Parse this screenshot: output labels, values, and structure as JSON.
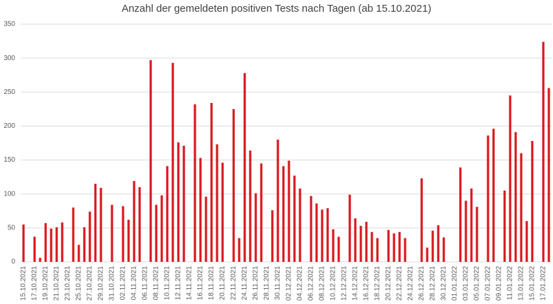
{
  "chart_data": {
    "type": "bar",
    "title": "Anzahl der gemeldeten positiven Tests nach Tagen (ab 15.10.2021)",
    "categories": [
      "15.10.2021",
      null,
      "17.10.2021",
      null,
      "19.10.2021",
      null,
      "21.10.2021",
      null,
      "23.10.2021",
      null,
      "25.10.2021",
      null,
      "27.10.2021",
      null,
      "29.10.2021",
      null,
      "31.10.2021",
      null,
      "02.11.2021",
      null,
      "04.11.2021",
      null,
      "06.11.2021",
      null,
      "08.11.2021",
      null,
      "10.11.2021",
      null,
      "12.11.2021",
      null,
      "14.11.2021",
      null,
      "16.11.2021",
      null,
      "18.11.2021",
      null,
      "20.11.2021",
      null,
      "22.11.2021",
      null,
      "24.11.2021",
      null,
      "26.11.2021",
      null,
      "28.11.2021",
      null,
      "30.11.2021",
      null,
      "02.12.2021",
      null,
      "04.12.2021",
      null,
      "06.12.2021",
      null,
      "08.12.2021",
      null,
      "10.12.2021",
      null,
      "12.12.2021",
      null,
      "14.12.2021",
      null,
      "16.12.2021",
      null,
      "18.12.2021",
      null,
      "20.12.2021",
      null,
      "22.12.2021",
      null,
      "24.12.2021",
      null,
      "26.12.2021",
      null,
      "28.12.2021",
      null,
      "30.12.2021",
      null,
      "01.01.2022",
      null,
      "03.01.2022",
      null,
      "05.01.2022",
      null,
      "07.01.2022",
      null,
      "09.01.2022",
      null,
      "11.01.2022",
      null,
      "13.01.2022",
      null,
      "15.01.2022",
      null,
      "17.01.2022",
      null
    ],
    "values": [
      55,
      0,
      37,
      6,
      57,
      49,
      51,
      58,
      0,
      80,
      25,
      51,
      74,
      115,
      109,
      0,
      84,
      0,
      82,
      62,
      119,
      110,
      0,
      297,
      84,
      98,
      141,
      293,
      176,
      171,
      0,
      232,
      153,
      96,
      234,
      173,
      146,
      0,
      225,
      35,
      278,
      164,
      101,
      145,
      0,
      76,
      180,
      141,
      149,
      127,
      108,
      0,
      97,
      86,
      77,
      79,
      48,
      37,
      0,
      99,
      64,
      53,
      59,
      44,
      35,
      0,
      47,
      42,
      44,
      35,
      0,
      0,
      123,
      21,
      46,
      54,
      36,
      0,
      0,
      139,
      90,
      108,
      81,
      0,
      186,
      196,
      0,
      105,
      245,
      191,
      160,
      60,
      178,
      0,
      324,
      256
    ],
    "color": "#d9161c",
    "ylim": [
      0,
      350
    ],
    "yticks": [
      0,
      50,
      100,
      150,
      200,
      250,
      300,
      350
    ],
    "grid": true
  }
}
